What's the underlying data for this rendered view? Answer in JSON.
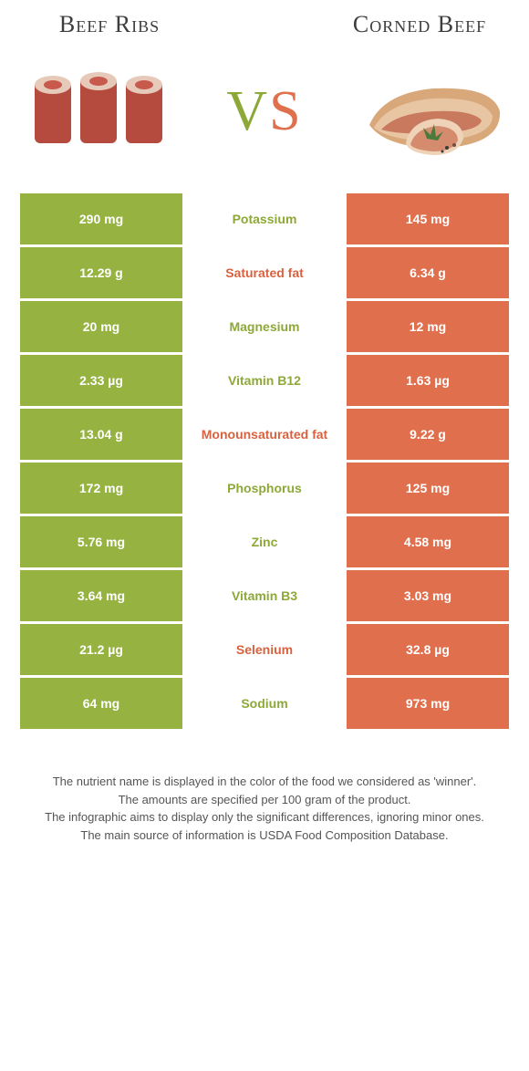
{
  "titles": {
    "left": "Beef Ribs",
    "right": "Corned Beef"
  },
  "vs": {
    "v": "V",
    "s": "S"
  },
  "colors": {
    "left_bg": "#96b341",
    "right_bg": "#e0704d",
    "left_text": "#8ea838",
    "right_text": "#d8623f"
  },
  "rows": [
    {
      "left": "290 mg",
      "label": "Potassium",
      "right": "145 mg",
      "winner": "a"
    },
    {
      "left": "12.29 g",
      "label": "Saturated fat",
      "right": "6.34 g",
      "winner": "b"
    },
    {
      "left": "20 mg",
      "label": "Magnesium",
      "right": "12 mg",
      "winner": "a"
    },
    {
      "left": "2.33 µg",
      "label": "Vitamin B12",
      "right": "1.63 µg",
      "winner": "a"
    },
    {
      "left": "13.04 g",
      "label": "Monounsaturated fat",
      "right": "9.22 g",
      "winner": "b"
    },
    {
      "left": "172 mg",
      "label": "Phosphorus",
      "right": "125 mg",
      "winner": "a"
    },
    {
      "left": "5.76 mg",
      "label": "Zinc",
      "right": "4.58 mg",
      "winner": "a"
    },
    {
      "left": "3.64 mg",
      "label": "Vitamin B3",
      "right": "3.03 mg",
      "winner": "a"
    },
    {
      "left": "21.2 µg",
      "label": "Selenium",
      "right": "32.8 µg",
      "winner": "b"
    },
    {
      "left": "64 mg",
      "label": "Sodium",
      "right": "973 mg",
      "winner": "a"
    }
  ],
  "footnotes": [
    "The nutrient name is displayed in the color of the food we considered as 'winner'.",
    "The amounts are specified per 100 gram of the product.",
    "The infographic aims to display only the significant differences, ignoring minor ones.",
    "The main source of information is USDA Food Composition Database."
  ]
}
